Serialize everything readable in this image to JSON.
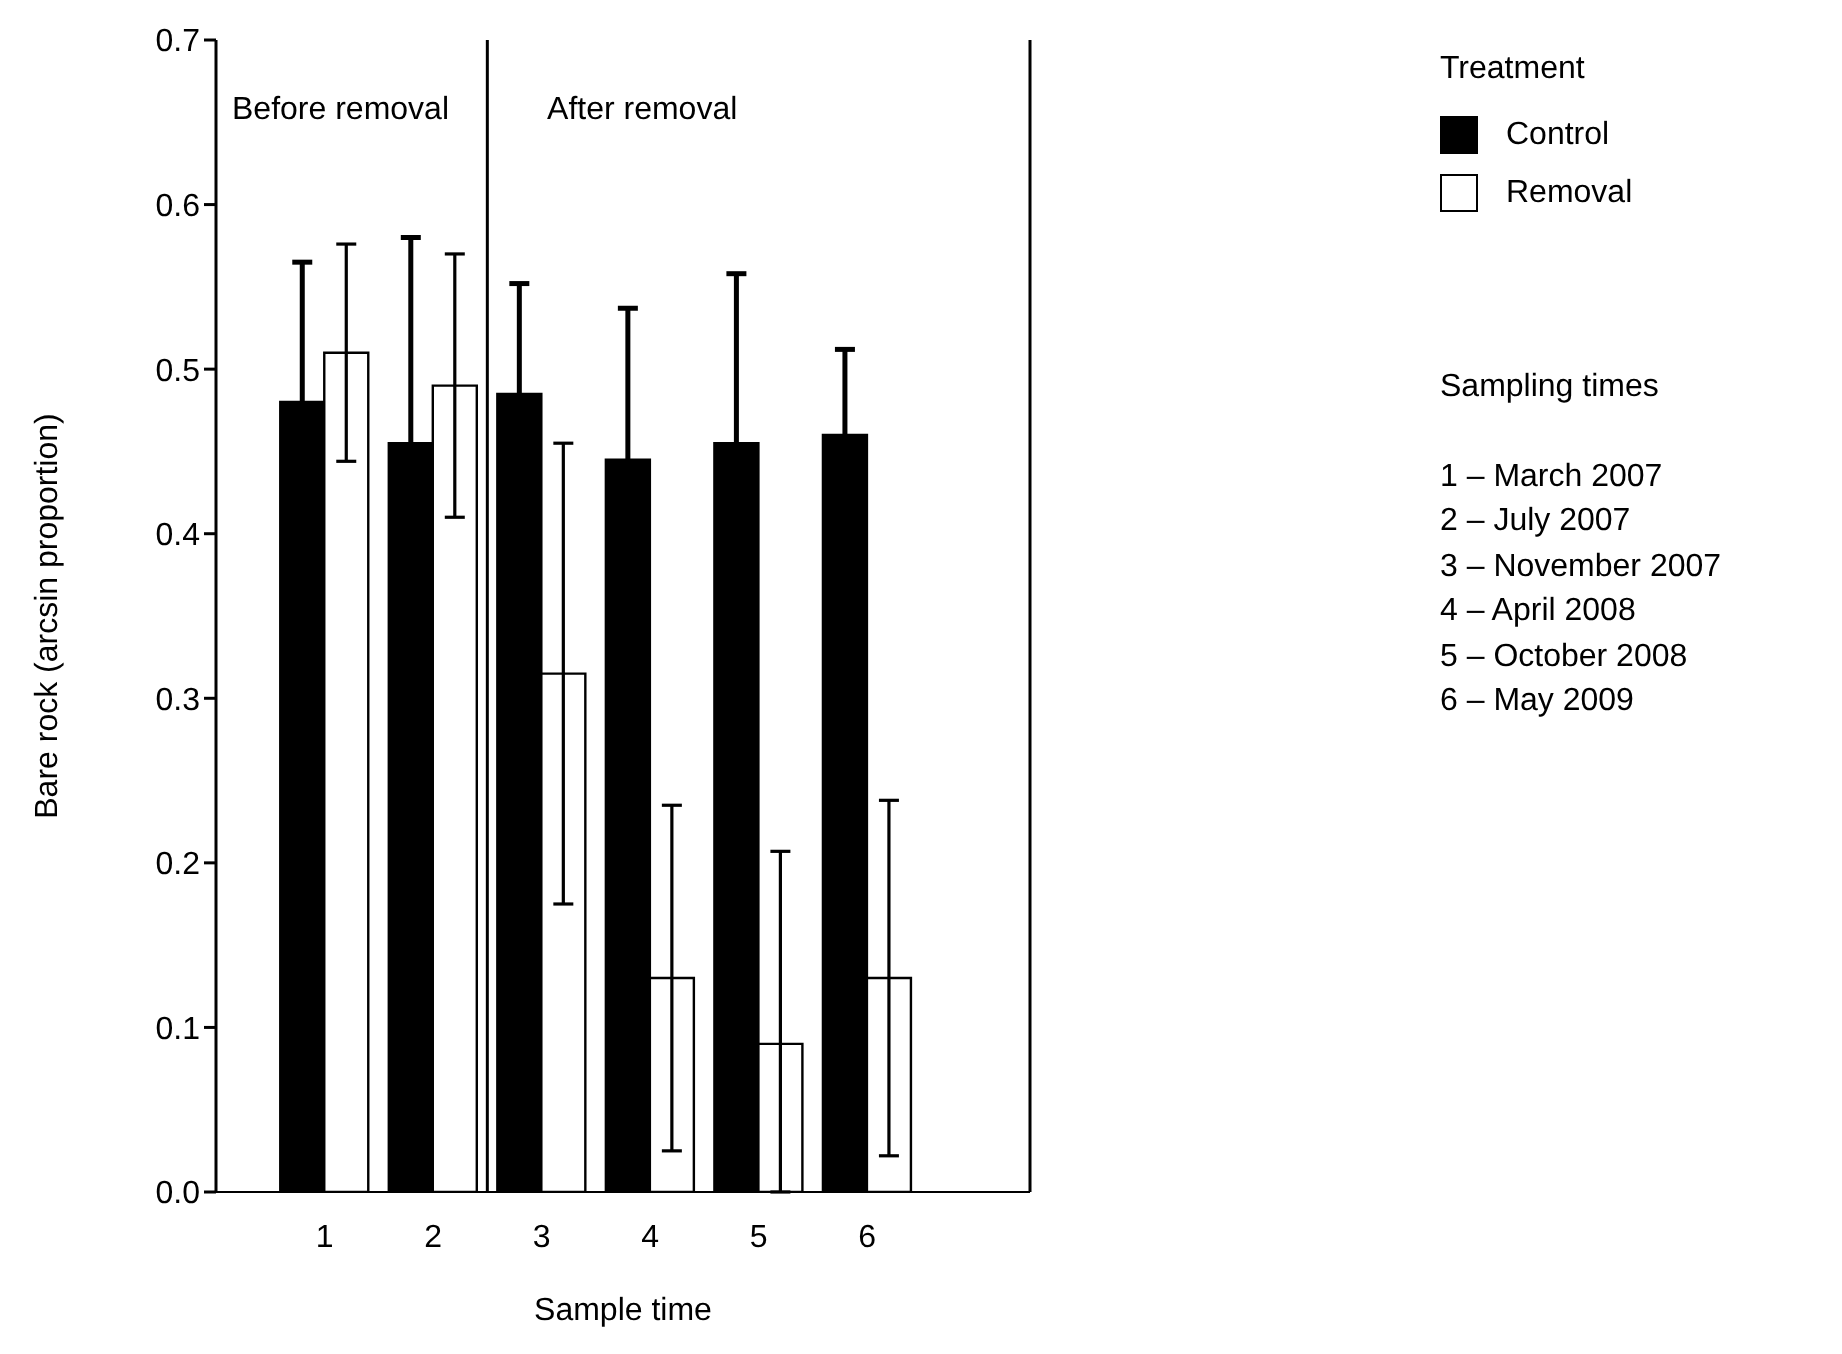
{
  "chart_data": {
    "type": "bar",
    "xlabel": "Sample time",
    "ylabel": "Bare rock (arcsin proportion)",
    "legend_title": "Treatment",
    "x": [
      1,
      2,
      3,
      4,
      5,
      6
    ],
    "xlim": [
      0,
      7.5
    ],
    "xticks": [
      1,
      2,
      3,
      4,
      5,
      6
    ],
    "ylim": [
      0,
      0.7
    ],
    "yticks": [
      {
        "value": 0,
        "label": "0.0"
      },
      0.1,
      0.2,
      0.3,
      0.4,
      0.5,
      0.6,
      0.7
    ],
    "series": [
      {
        "name": "Control",
        "color": "#000000",
        "values": [
          0.48,
          0.455,
          0.485,
          0.445,
          0.455,
          0.46
        ],
        "errors": [
          0.085,
          0.125,
          0.067,
          0.092,
          0.103,
          0.052
        ]
      },
      {
        "name": "Removal",
        "color": "#ffffff",
        "values": [
          0.51,
          0.49,
          0.315,
          0.13,
          0.09,
          0.13
        ],
        "errors": [
          0.066,
          0.08,
          0.14,
          0.105,
          [
            0,
            0.207
          ],
          0.108
        ]
      }
    ],
    "ref_lines": [
      {
        "axis": "x",
        "value": 2.5,
        "color": "#000000"
      }
    ],
    "annotations": [
      "Before removal",
      "After removal",
      "Sampling times",
      "1 – March 2007",
      "2 – July 2007",
      "3 – November 2007",
      "4 – April 2008",
      "5 – October 2008",
      "6 – May 2009"
    ],
    "legend": "right",
    "grid": false
  }
}
